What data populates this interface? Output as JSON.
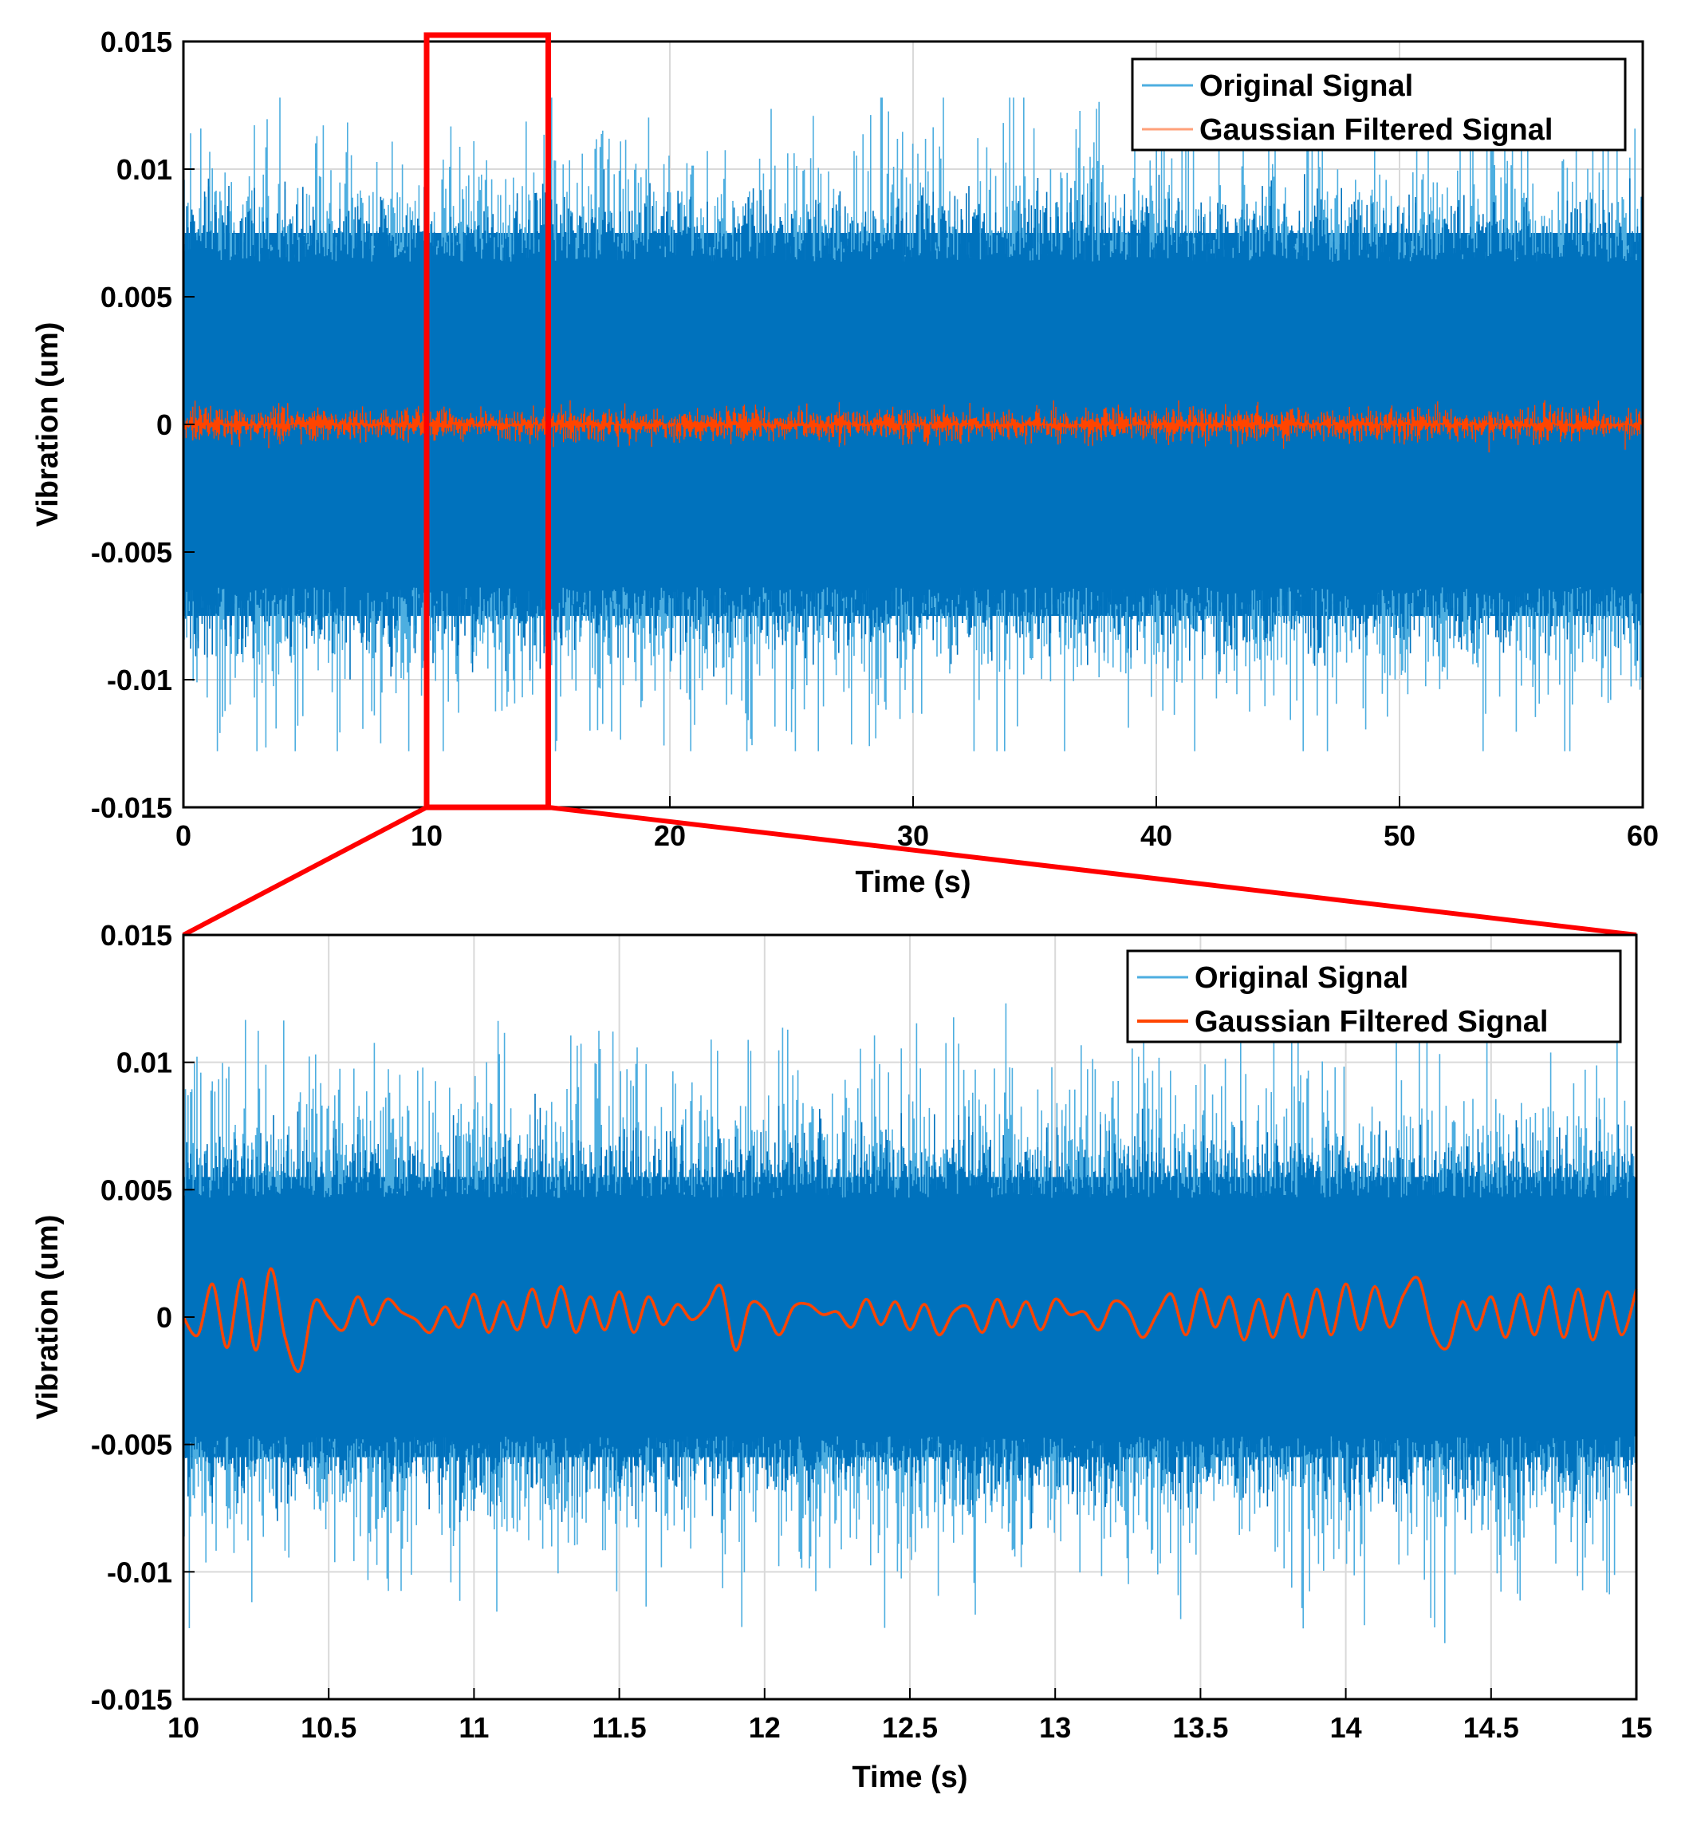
{
  "colors": {
    "original": "#0072BD",
    "original_light": "#4DAEE0",
    "filtered": "#FF4500",
    "zoom_box": "#FF0000",
    "grid": "#D9D9D9"
  },
  "chart_data": [
    {
      "type": "line",
      "title": "",
      "xlabel": "Time (s)",
      "ylabel": "Vibration (um)",
      "xlim": [
        0,
        60
      ],
      "ylim": [
        -0.015,
        0.015
      ],
      "xticks": [
        0,
        10,
        20,
        30,
        40,
        50,
        60
      ],
      "xtick_labels": [
        "0",
        "10",
        "20",
        "30",
        "40",
        "50",
        "60"
      ],
      "yticks": [
        0.015,
        0.01,
        0.005,
        0,
        -0.005,
        -0.01,
        -0.015
      ],
      "ytick_labels": [
        "0.015",
        "0.01",
        "0.005",
        "0",
        "-0.005",
        "-0.01",
        "-0.015"
      ],
      "grid": true,
      "legend": "top-right",
      "zoom_region": {
        "x": [
          10,
          15
        ],
        "y": [
          -0.015,
          0.015
        ]
      },
      "series": [
        {
          "name": "Original Signal",
          "envelope_core": 0.0075,
          "envelope_peak": 0.0128
        },
        {
          "name": "Gaussian Filtered Signal",
          "envelope_core": 0.0007,
          "envelope_peak": 0.0018
        }
      ]
    },
    {
      "type": "line",
      "title": "",
      "xlabel": "Time (s)",
      "ylabel": "Vibration (um)",
      "xlim": [
        10,
        15
      ],
      "ylim": [
        -0.015,
        0.015
      ],
      "xticks": [
        10,
        10.5,
        11,
        11.5,
        12,
        12.5,
        13,
        13.5,
        14,
        14.5,
        15
      ],
      "xtick_labels": [
        "10",
        "10.5",
        "11",
        "11.5",
        "12",
        "12.5",
        "13",
        "13.5",
        "14",
        "14.5",
        "15"
      ],
      "yticks": [
        0.015,
        0.01,
        0.005,
        0,
        -0.005,
        -0.01,
        -0.015
      ],
      "ytick_labels": [
        "0.015",
        "0.01",
        "0.005",
        "0",
        "-0.005",
        "-0.01",
        "-0.015"
      ],
      "grid": true,
      "legend": "top-right",
      "series": [
        {
          "name": "Original Signal",
          "envelope_core": 0.0055,
          "envelope_peak": 0.0128
        },
        {
          "name": "Gaussian Filtered Signal",
          "x": [
            10.0,
            10.05,
            10.1,
            10.15,
            10.2,
            10.25,
            10.3,
            10.35,
            10.4,
            10.45,
            10.5,
            10.55,
            10.6,
            10.65,
            10.7,
            10.75,
            10.8,
            10.85,
            10.9,
            10.95,
            11.0,
            11.05,
            11.1,
            11.15,
            11.2,
            11.25,
            11.3,
            11.35,
            11.4,
            11.45,
            11.5,
            11.55,
            11.6,
            11.65,
            11.7,
            11.75,
            11.8,
            11.85,
            11.9,
            11.95,
            12.0,
            12.05,
            12.1,
            12.15,
            12.2,
            12.25,
            12.3,
            12.35,
            12.4,
            12.45,
            12.5,
            12.55,
            12.6,
            12.65,
            12.7,
            12.75,
            12.8,
            12.85,
            12.9,
            12.95,
            13.0,
            13.05,
            13.1,
            13.15,
            13.2,
            13.25,
            13.3,
            13.35,
            13.4,
            13.45,
            13.5,
            13.55,
            13.6,
            13.65,
            13.7,
            13.75,
            13.8,
            13.85,
            13.9,
            13.95,
            14.0,
            14.05,
            14.1,
            14.15,
            14.2,
            14.25,
            14.3,
            14.35,
            14.4,
            14.45,
            14.5,
            14.55,
            14.6,
            14.65,
            14.7,
            14.75,
            14.8,
            14.85,
            14.9,
            14.95,
            15.0
          ],
          "values": [
            0.0,
            -0.0007,
            0.0013,
            -0.0012,
            0.0015,
            -0.0013,
            0.0019,
            -0.0008,
            -0.0021,
            0.0006,
            0.0,
            -0.0005,
            0.0008,
            -0.0003,
            0.0007,
            0.0002,
            -0.0001,
            -0.0006,
            0.0004,
            -0.0004,
            0.0009,
            -0.0006,
            0.0006,
            -0.0005,
            0.0011,
            -0.0004,
            0.0012,
            -0.0006,
            0.0008,
            -0.0005,
            0.001,
            -0.0006,
            0.0008,
            -0.0003,
            0.0005,
            -0.0001,
            0.0004,
            0.0012,
            -0.0013,
            0.0005,
            0.0003,
            -0.0007,
            0.0004,
            0.0005,
            0.0001,
            0.0002,
            -0.0004,
            0.0007,
            -0.0003,
            0.0006,
            -0.0005,
            0.0005,
            -0.0007,
            0.0002,
            0.0004,
            -0.0006,
            0.0007,
            -0.0004,
            0.0006,
            -0.0005,
            0.0007,
            0.0001,
            0.0002,
            -0.0005,
            0.0006,
            0.0003,
            -0.0008,
            0.0001,
            0.0009,
            -0.0007,
            0.0011,
            -0.0004,
            0.0008,
            -0.0009,
            0.0007,
            -0.0008,
            0.0009,
            -0.0008,
            0.0011,
            -0.0007,
            0.0013,
            -0.0005,
            0.0012,
            -0.0004,
            0.0009,
            0.0015,
            -0.0006,
            -0.0012,
            0.0006,
            -0.0005,
            0.0008,
            -0.0008,
            0.0009,
            -0.0007,
            0.0012,
            -0.0008,
            0.0011,
            -0.0009,
            0.001,
            -0.0007,
            0.0011
          ]
        }
      ]
    }
  ]
}
